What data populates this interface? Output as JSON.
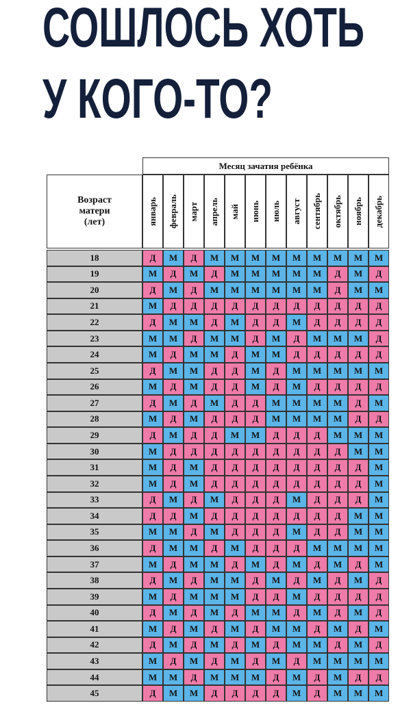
{
  "header": {
    "title_lines": [
      "СОШЛОСЬ ХОТЬ",
      "У КОГО-ТО?"
    ]
  },
  "table": {
    "caption": "Месяц зачатия ребёнка",
    "age_header": "Возраст матери (лет)",
    "months": [
      "январь",
      "февраль",
      "март",
      "апрель",
      "май",
      "июнь",
      "июль",
      "август",
      "сентябрь",
      "октябрь",
      "ноябрь",
      "декабрь"
    ],
    "cell_colors": {
      "Д": "#ef7ba9",
      "М": "#5bb5e8"
    },
    "rows": [
      [
        "18",
        "Д",
        "М",
        "Д",
        "М",
        "М",
        "М",
        "М",
        "М",
        "М",
        "М",
        "М",
        "М"
      ],
      [
        "19",
        "М",
        "Д",
        "М",
        "Д",
        "М",
        "М",
        "М",
        "М",
        "М",
        "Д",
        "М",
        "Д"
      ],
      [
        "20",
        "Д",
        "М",
        "Д",
        "М",
        "М",
        "М",
        "М",
        "М",
        "М",
        "Д",
        "М",
        "М"
      ],
      [
        "21",
        "М",
        "Д",
        "Д",
        "Д",
        "Д",
        "Д",
        "Д",
        "Д",
        "Д",
        "Д",
        "Д",
        "Д"
      ],
      [
        "22",
        "Д",
        "М",
        "М",
        "Д",
        "М",
        "Д",
        "Д",
        "М",
        "Д",
        "Д",
        "Д",
        "Д"
      ],
      [
        "23",
        "М",
        "М",
        "Д",
        "М",
        "М",
        "Д",
        "М",
        "Д",
        "М",
        "М",
        "М",
        "Д"
      ],
      [
        "24",
        "М",
        "Д",
        "М",
        "М",
        "Д",
        "М",
        "М",
        "Д",
        "Д",
        "Д",
        "Д",
        "Д"
      ],
      [
        "25",
        "Д",
        "М",
        "М",
        "Д",
        "Д",
        "М",
        "Д",
        "М",
        "М",
        "М",
        "М",
        "М"
      ],
      [
        "26",
        "М",
        "Д",
        "М",
        "Д",
        "Д",
        "М",
        "Д",
        "М",
        "Д",
        "Д",
        "Д",
        "Д"
      ],
      [
        "27",
        "Д",
        "М",
        "Д",
        "М",
        "Д",
        "Д",
        "М",
        "М",
        "М",
        "М",
        "Д",
        "М"
      ],
      [
        "28",
        "М",
        "Д",
        "М",
        "Д",
        "Д",
        "Д",
        "М",
        "М",
        "М",
        "М",
        "Д",
        "Д"
      ],
      [
        "29",
        "Д",
        "М",
        "Д",
        "Д",
        "М",
        "М",
        "Д",
        "Д",
        "Д",
        "М",
        "М",
        "М"
      ],
      [
        "30",
        "М",
        "Д",
        "Д",
        "Д",
        "Д",
        "Д",
        "Д",
        "Д",
        "Д",
        "Д",
        "М",
        "М"
      ],
      [
        "31",
        "М",
        "Д",
        "М",
        "Д",
        "Д",
        "Д",
        "Д",
        "Д",
        "Д",
        "Д",
        "Д",
        "М"
      ],
      [
        "32",
        "М",
        "Д",
        "М",
        "Д",
        "Д",
        "Д",
        "Д",
        "Д",
        "Д",
        "Д",
        "Д",
        "М"
      ],
      [
        "33",
        "Д",
        "М",
        "Д",
        "М",
        "Д",
        "Д",
        "Д",
        "М",
        "Д",
        "Д",
        "Д",
        "М"
      ],
      [
        "34",
        "Д",
        "Д",
        "М",
        "Д",
        "Д",
        "Д",
        "Д",
        "Д",
        "Д",
        "Д",
        "М",
        "М"
      ],
      [
        "35",
        "М",
        "М",
        "Д",
        "М",
        "Д",
        "Д",
        "Д",
        "М",
        "Д",
        "Д",
        "М",
        "М"
      ],
      [
        "36",
        "Д",
        "М",
        "М",
        "Д",
        "М",
        "Д",
        "Д",
        "Д",
        "М",
        "М",
        "М",
        "М"
      ],
      [
        "37",
        "М",
        "Д",
        "М",
        "М",
        "Д",
        "М",
        "Д",
        "М",
        "Д",
        "М",
        "Д",
        "М"
      ],
      [
        "38",
        "Д",
        "М",
        "Д",
        "М",
        "М",
        "Д",
        "М",
        "Д",
        "М",
        "Д",
        "М",
        "Д"
      ],
      [
        "39",
        "М",
        "Д",
        "М",
        "М",
        "М",
        "Д",
        "Д",
        "М",
        "Д",
        "Д",
        "Д",
        "Д"
      ],
      [
        "40",
        "Д",
        "М",
        "Д",
        "М",
        "Д",
        "М",
        "М",
        "Д",
        "М",
        "Д",
        "М",
        "Д"
      ],
      [
        "41",
        "М",
        "Д",
        "М",
        "Д",
        "М",
        "Д",
        "М",
        "М",
        "Д",
        "М",
        "Д",
        "М"
      ],
      [
        "42",
        "Д",
        "М",
        "Д",
        "М",
        "Д",
        "М",
        "Д",
        "М",
        "М",
        "Д",
        "М",
        "Д"
      ],
      [
        "43",
        "М",
        "Д",
        "М",
        "Д",
        "М",
        "Д",
        "М",
        "Д",
        "М",
        "М",
        "М",
        "М"
      ],
      [
        "44",
        "М",
        "М",
        "Д",
        "М",
        "М",
        "М",
        "Д",
        "М",
        "Д",
        "М",
        "Д",
        "Д"
      ],
      [
        "45",
        "Д",
        "М",
        "М",
        "Д",
        "Д",
        "Д",
        "Д",
        "М",
        "Д",
        "М",
        "М",
        "М"
      ]
    ]
  }
}
